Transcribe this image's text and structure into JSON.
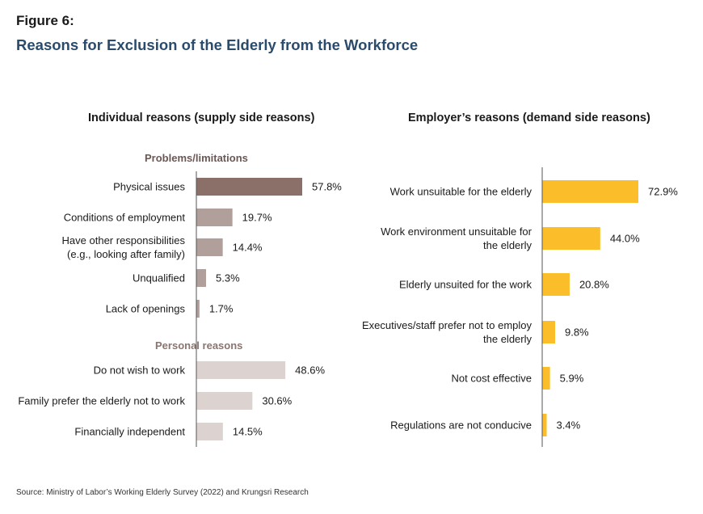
{
  "figure_label": "Figure 6:",
  "figure_title": "Reasons for Exclusion of the Elderly from the Workforce",
  "source": "Source: Ministry of Labor’s Working Elderly Survey (2022) and Krungsri Research",
  "colors": {
    "title": "#2a4b6b",
    "problems_bar": "#8b6f69",
    "problems_bar_light": "#b09f9b",
    "personal_bar": "#dcd3d1",
    "employer_bar": "#fbbd2a",
    "group_title": "#6b5753",
    "personal_title": "#8a7570",
    "axis": "#555555"
  },
  "chart_data": [
    {
      "type": "bar",
      "orientation": "horizontal",
      "title": "Individual reasons (supply side reasons)",
      "groups": [
        {
          "name": "Problems/limitations",
          "categories": [
            "Physical issues",
            "Conditions of employment",
            "Have other responsibilities|(e.g., looking after family)",
            "Unqualified",
            "Lack of openings"
          ],
          "values": [
            57.8,
            19.7,
            14.4,
            5.3,
            1.7
          ],
          "labels": [
            "57.8%",
            "19.7%",
            "14.4%",
            "5.3%",
            "1.7%"
          ]
        },
        {
          "name": "Personal reasons",
          "categories": [
            "Do not wish to work",
            "Family prefer the elderly not to work",
            "Financially independent"
          ],
          "values": [
            48.6,
            30.6,
            14.5
          ],
          "labels": [
            "48.6%",
            "30.6%",
            "14.5%"
          ]
        }
      ],
      "xlim": [
        0,
        100
      ]
    },
    {
      "type": "bar",
      "orientation": "horizontal",
      "title": "Employer’s reasons (demand side reasons)",
      "categories": [
        "Work unsuitable for the elderly",
        "Work environment unsuitable for|the elderly",
        "Elderly unsuited for the work",
        "Executives/staff prefer not to employ|the elderly",
        "Not cost effective",
        "Regulations are not conducive"
      ],
      "values": [
        72.9,
        44.0,
        20.8,
        9.8,
        5.9,
        3.4
      ],
      "labels": [
        "72.9%",
        "44.0%",
        "20.8%",
        "9.8%",
        "5.9%",
        "3.4%"
      ],
      "xlim": [
        0,
        100
      ]
    }
  ]
}
